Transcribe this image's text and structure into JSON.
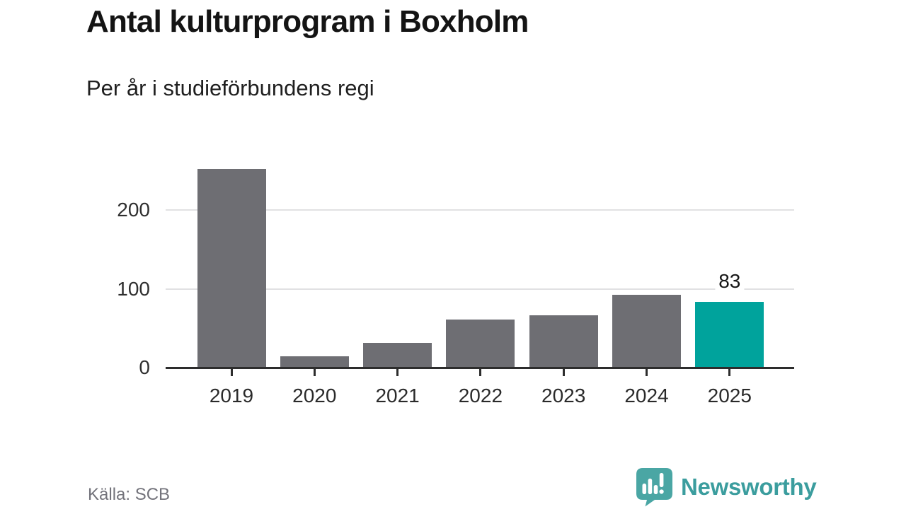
{
  "header": {
    "title": "Antal kulturprogram i Boxholm",
    "subtitle": "Per år i studieförbundens regi"
  },
  "chart_data": {
    "type": "bar",
    "title": "Antal kulturprogram i Boxholm",
    "subtitle": "Per år i studieförbundens regi",
    "categories": [
      "2019",
      "2020",
      "2021",
      "2022",
      "2023",
      "2024",
      "2025"
    ],
    "values": [
      252,
      14,
      31,
      61,
      66,
      92,
      83
    ],
    "xlabel": "",
    "ylabel": "",
    "yticks": [
      0,
      100,
      200
    ],
    "ylim": [
      0,
      260
    ],
    "grid": "horizontal",
    "legend": "none",
    "bar_color": "#6e6e73",
    "highlight_category": "2025",
    "highlight_color": "#00a39c",
    "value_labels": [
      {
        "category": "2025",
        "text": "83"
      }
    ]
  },
  "footer": {
    "source": "Källa: SCB",
    "logo_text": "Newsworthy",
    "logo_icon": "bar-chart-speech-bubble-icon",
    "logo_color": "#3b9d9e",
    "logo_icon_color": "#4aa6a4"
  }
}
